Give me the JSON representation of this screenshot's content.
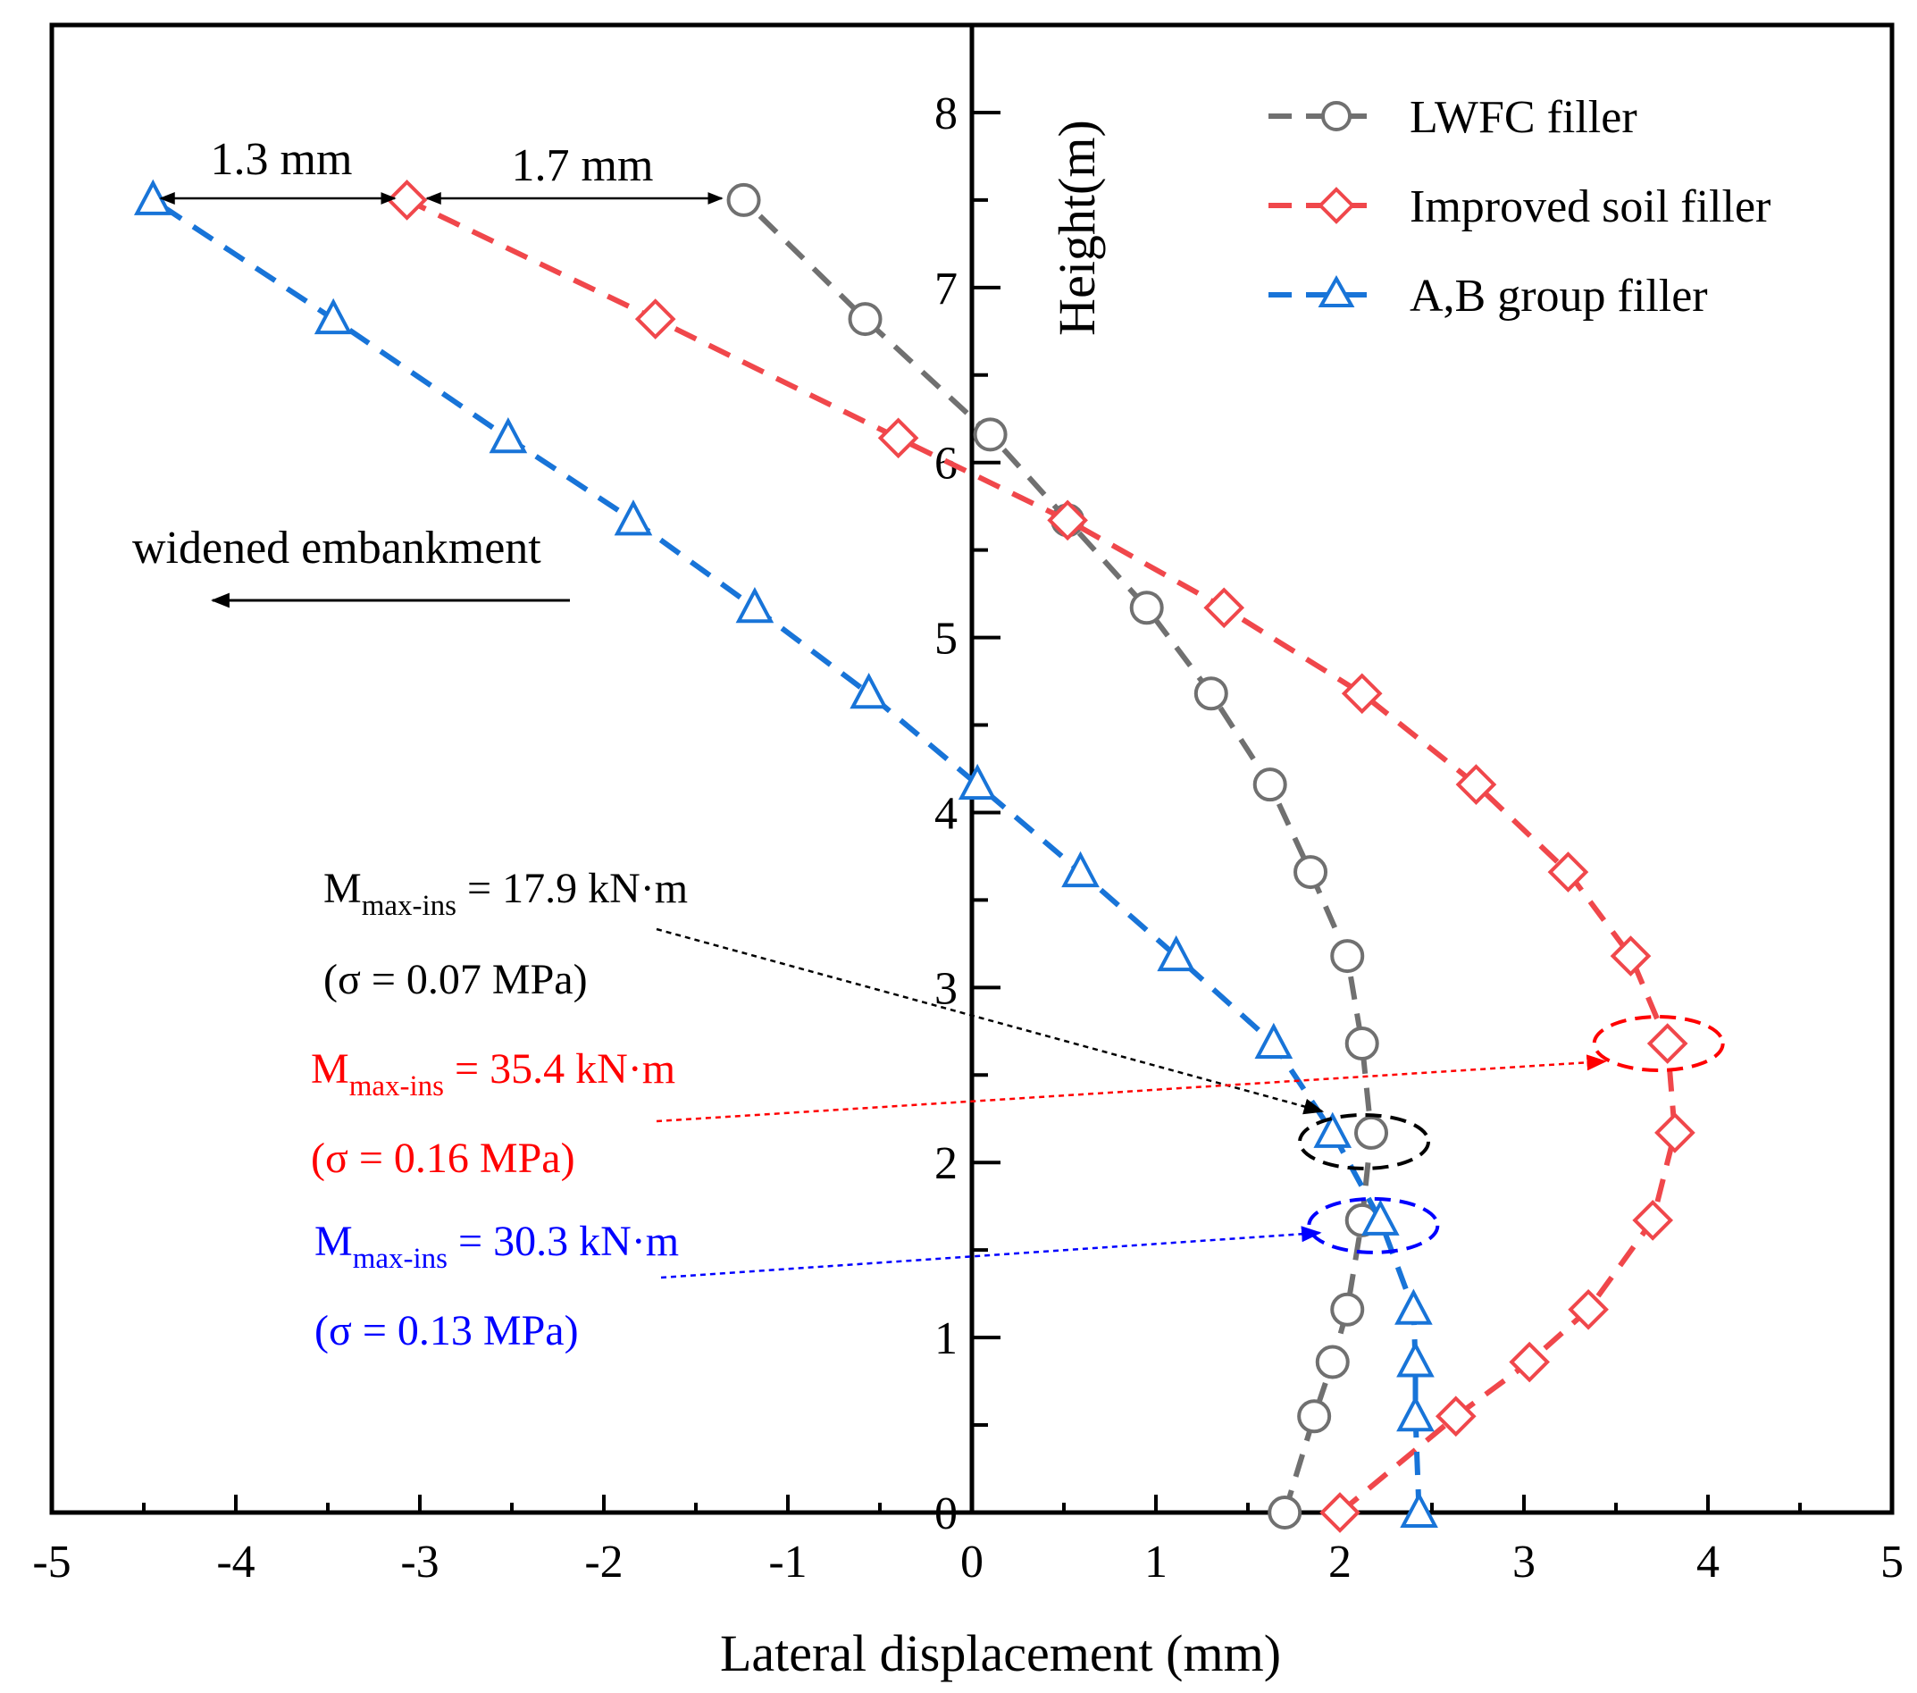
{
  "chart_data": {
    "type": "line",
    "title": "",
    "xlabel": "Lateral displacement (mm)",
    "ylabel": "Height(m)",
    "xlim": [
      -5,
      5
    ],
    "ylim": [
      0,
      8.5
    ],
    "x_ticks": [
      "-5",
      "-4",
      "-3",
      "-2",
      "-1",
      "0",
      "1",
      "2",
      "3",
      "4",
      "5"
    ],
    "y_ticks": [
      "0",
      "1",
      "2",
      "3",
      "4",
      "5",
      "6",
      "7",
      "8"
    ],
    "legend_position": "top-right",
    "series": [
      {
        "name": "LWFC filler",
        "color": "#707070",
        "marker": "circle",
        "points": [
          {
            "x": 1.7,
            "y": 0
          },
          {
            "x": 1.86,
            "y": 0.55
          },
          {
            "x": 1.96,
            "y": 0.86
          },
          {
            "x": 2.04,
            "y": 1.16
          },
          {
            "x": 2.12,
            "y": 1.67
          },
          {
            "x": 2.17,
            "y": 2.17
          },
          {
            "x": 2.12,
            "y": 2.68
          },
          {
            "x": 2.04,
            "y": 3.18
          },
          {
            "x": 1.84,
            "y": 3.66
          },
          {
            "x": 1.62,
            "y": 4.16
          },
          {
            "x": 1.3,
            "y": 4.68
          },
          {
            "x": 0.95,
            "y": 5.17
          },
          {
            "x": 0.52,
            "y": 5.67
          },
          {
            "x": 0.1,
            "y": 6.16
          },
          {
            "x": -0.58,
            "y": 6.82
          },
          {
            "x": -1.24,
            "y": 7.5
          }
        ]
      },
      {
        "name": "Improved soil filler",
        "color": "#f0474b",
        "marker": "diamond",
        "points": [
          {
            "x": 2.0,
            "y": 0
          },
          {
            "x": 2.63,
            "y": 0.55
          },
          {
            "x": 3.03,
            "y": 0.86
          },
          {
            "x": 3.35,
            "y": 1.16
          },
          {
            "x": 3.7,
            "y": 1.67
          },
          {
            "x": 3.82,
            "y": 2.17
          },
          {
            "x": 3.78,
            "y": 2.68
          },
          {
            "x": 3.58,
            "y": 3.18
          },
          {
            "x": 3.24,
            "y": 3.66
          },
          {
            "x": 2.74,
            "y": 4.16
          },
          {
            "x": 2.12,
            "y": 4.68
          },
          {
            "x": 1.37,
            "y": 5.17
          },
          {
            "x": 0.52,
            "y": 5.67
          },
          {
            "x": -0.4,
            "y": 6.14
          },
          {
            "x": -1.72,
            "y": 6.82
          },
          {
            "x": -3.07,
            "y": 7.5
          }
        ]
      },
      {
        "name": "A,B group filler",
        "color": "#1874d8",
        "marker": "triangle",
        "points": [
          {
            "x": 2.43,
            "y": 0
          },
          {
            "x": 2.41,
            "y": 0.55
          },
          {
            "x": 2.41,
            "y": 0.86
          },
          {
            "x": 2.4,
            "y": 1.16
          },
          {
            "x": 2.22,
            "y": 1.67
          },
          {
            "x": 1.96,
            "y": 2.17
          },
          {
            "x": 1.64,
            "y": 2.68
          },
          {
            "x": 1.11,
            "y": 3.18
          },
          {
            "x": 0.59,
            "y": 3.66
          },
          {
            "x": 0.03,
            "y": 4.16
          },
          {
            "x": -0.56,
            "y": 4.68
          },
          {
            "x": -1.18,
            "y": 5.17
          },
          {
            "x": -1.84,
            "y": 5.67
          },
          {
            "x": -2.52,
            "y": 6.14
          },
          {
            "x": -3.47,
            "y": 6.82
          },
          {
            "x": -4.45,
            "y": 7.5
          }
        ]
      }
    ],
    "annotations": {
      "gap1": "1.3 mm",
      "gap2": "1.7 mm",
      "direction": "widened embankment",
      "m_main": "M",
      "m_sub": "max-ins",
      "black_value": " = 17.9 kN·m",
      "black_sigma": "(σ = 0.07 MPa)",
      "red_value": " = 35.4 kN·m",
      "red_sigma": "(σ = 0.16 MPa)",
      "blue_value": " = 30.3 kN·m",
      "blue_sigma": "(σ = 0.13 MPa)",
      "black_color": "#000000",
      "red_color": "#ff0000",
      "blue_color": "#0000ff"
    }
  }
}
